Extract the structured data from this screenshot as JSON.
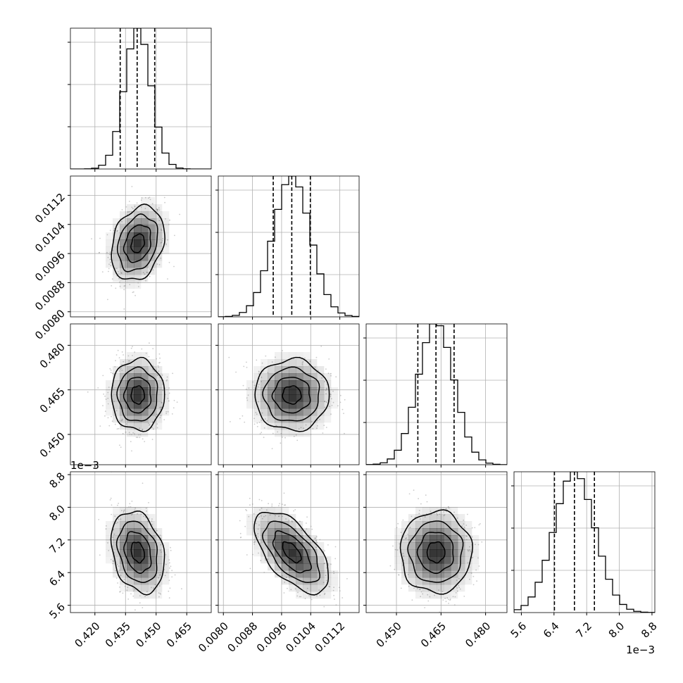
{
  "chart_data": {
    "type": "corner",
    "title": "",
    "parameters": [
      {
        "label": "",
        "range": [
          0.408,
          0.477
        ],
        "ticks": [
          0.42,
          0.435,
          0.45,
          0.465
        ],
        "tick_labels": [
          "0.420",
          "0.435",
          "0.450",
          "0.465"
        ],
        "quantiles": [
          0.4324,
          0.4407,
          0.4493
        ],
        "mean": 0.441,
        "sd": 0.0065
      },
      {
        "label": "",
        "range": [
          0.00786,
          0.01173
        ],
        "ticks": [
          0.008,
          0.0088,
          0.0096,
          0.0104,
          0.0112
        ],
        "tick_labels": [
          "0.0080",
          "0.0088",
          "0.0096",
          "0.0104",
          "0.0112"
        ],
        "quantiles": [
          0.00937,
          0.00988,
          0.01039
        ],
        "mean": 0.00988,
        "sd": 0.00051
      },
      {
        "label": "",
        "range": [
          0.4398,
          0.4872
        ],
        "ticks": [
          0.45,
          0.465,
          0.48
        ],
        "tick_labels": [
          "0.450",
          "0.465",
          "0.480"
        ],
        "quantiles": [
          0.4572,
          0.4633,
          0.4694
        ],
        "mean": 0.4633,
        "sd": 0.006
      },
      {
        "label": "",
        "range": [
          0.00542,
          0.00887
        ],
        "ticks": [
          0.0056,
          0.0064,
          0.0072,
          0.008,
          0.0088
        ],
        "tick_labels": [
          "5.6",
          "6.4",
          "7.2",
          "8.0",
          "8.8"
        ],
        "quantiles": [
          0.00641,
          0.0069,
          0.00739
        ],
        "mean": 0.0069,
        "sd": 0.0005,
        "offset_label": "1e−3"
      }
    ],
    "correlations": [
      [
        1,
        0.25,
        0.0,
        -0.25
      ],
      [
        0.25,
        1,
        0.0,
        -0.6
      ],
      [
        0.0,
        0.0,
        1,
        0.0
      ],
      [
        -0.25,
        -0.6,
        0.0,
        1
      ]
    ],
    "histogram_bins": 20,
    "contour_levels": [
      0.5,
      1.0,
      1.5,
      2.0
    ],
    "grid": true,
    "colors": {
      "line": "#000000",
      "points": "#8c8c8c",
      "grid": "#b0b0b0",
      "density": "#000000"
    }
  }
}
